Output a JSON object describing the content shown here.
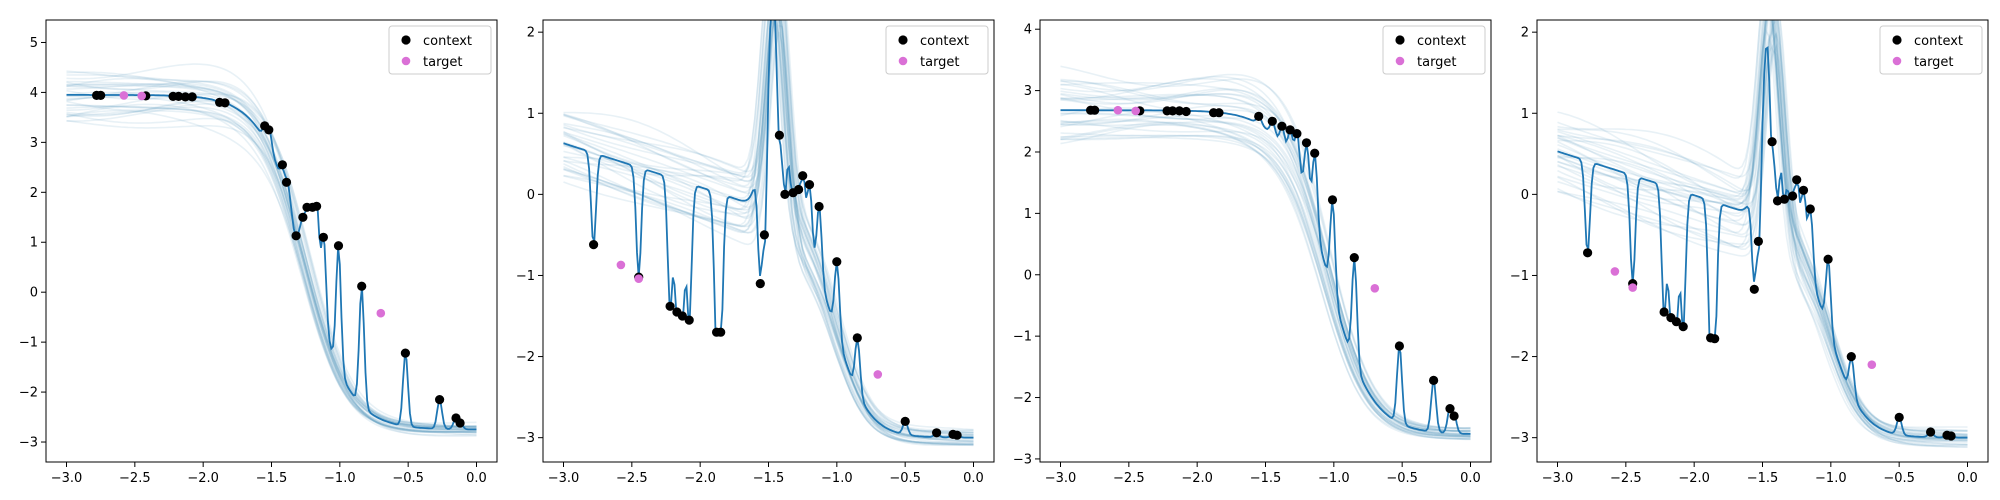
{
  "colors": {
    "mean_line": "#1f77b4",
    "samples": "#4f93b8",
    "context": "#000000",
    "target": "#da70d6",
    "axes": "#000000",
    "legend_border": "#cccccc"
  },
  "legend": {
    "context_label": "context",
    "target_label": "target",
    "placement": "top-right"
  },
  "chart_data": [
    {
      "type": "line",
      "title": "",
      "xlabel": "",
      "ylabel": "",
      "xlim": [
        -3.15,
        0.15
      ],
      "ylim": [
        -3.4,
        5.45
      ],
      "xticks": [
        -3.0,
        -2.5,
        -2.0,
        -1.5,
        -1.0,
        -0.5,
        0.0
      ],
      "yticks": [
        -3,
        -2,
        -1,
        0,
        1,
        2,
        3,
        4,
        5
      ],
      "mean_curve": {
        "low": -2.75,
        "high": 3.95,
        "center": -1.25,
        "width": 0.16,
        "peak": 0,
        "peak_center": -1.45,
        "peak_width": 0.1,
        "linear_slope": 0,
        "wiggle": 0.35
      },
      "sample_band": {
        "high_spread": 0.55,
        "low_spread": 0.12,
        "count": 32
      },
      "context": [
        [
          -2.78,
          3.94
        ],
        [
          -2.75,
          3.94
        ],
        [
          -2.42,
          3.93
        ],
        [
          -2.22,
          3.92
        ],
        [
          -2.18,
          3.92
        ],
        [
          -2.13,
          3.91
        ],
        [
          -2.08,
          3.91
        ],
        [
          -1.88,
          3.8
        ],
        [
          -1.84,
          3.79
        ],
        [
          -1.55,
          3.33
        ],
        [
          -1.52,
          3.25
        ],
        [
          -1.42,
          2.55
        ],
        [
          -1.39,
          2.2
        ],
        [
          -1.32,
          1.13
        ],
        [
          -1.27,
          1.5
        ],
        [
          -1.24,
          1.7
        ],
        [
          -1.2,
          1.7
        ],
        [
          -1.17,
          1.72
        ],
        [
          -1.12,
          1.1
        ],
        [
          -1.01,
          0.93
        ],
        [
          -0.84,
          0.12
        ],
        [
          -0.52,
          -1.22
        ],
        [
          -0.27,
          -2.15
        ],
        [
          -0.15,
          -2.52
        ],
        [
          -0.12,
          -2.62
        ]
      ],
      "target": [
        [
          -2.58,
          3.94
        ],
        [
          -2.45,
          3.93
        ],
        [
          -0.7,
          -0.42
        ]
      ]
    },
    {
      "type": "line",
      "title": "",
      "xlabel": "",
      "ylabel": "",
      "xlim": [
        -3.15,
        0.15
      ],
      "ylim": [
        -3.3,
        2.15
      ],
      "xticks": [
        -3.0,
        -2.5,
        -2.0,
        -1.5,
        -1.0,
        -0.5,
        0.0
      ],
      "yticks": [
        -3,
        -2,
        -1,
        0,
        1,
        2
      ],
      "mean_curve": {
        "low": -3.0,
        "high": -0.45,
        "center": -1.0,
        "width": 0.12,
        "peak": 2.8,
        "peak_center": -1.45,
        "peak_width": 0.1,
        "linear_slope": -0.9,
        "wiggle": 0.55
      },
      "sample_band": {
        "high_spread": 0.45,
        "low_spread": 0.1,
        "count": 32
      },
      "context": [
        [
          -2.78,
          -0.62
        ],
        [
          -2.45,
          -1.02
        ],
        [
          -2.22,
          -1.38
        ],
        [
          -2.17,
          -1.45
        ],
        [
          -2.13,
          -1.5
        ],
        [
          -2.08,
          -1.55
        ],
        [
          -1.88,
          -1.7
        ],
        [
          -1.85,
          -1.7
        ],
        [
          -1.56,
          -1.1
        ],
        [
          -1.53,
          -0.5
        ],
        [
          -1.42,
          0.73
        ],
        [
          -1.38,
          0.0
        ],
        [
          -1.32,
          0.02
        ],
        [
          -1.28,
          0.06
        ],
        [
          -1.25,
          0.23
        ],
        [
          -1.2,
          0.12
        ],
        [
          -1.13,
          -0.15
        ],
        [
          -1.0,
          -0.83
        ],
        [
          -0.85,
          -1.77
        ],
        [
          -0.5,
          -2.8
        ],
        [
          -0.27,
          -2.94
        ],
        [
          -0.15,
          -2.96
        ],
        [
          -0.12,
          -2.97
        ]
      ],
      "target": [
        [
          -2.58,
          -0.87
        ],
        [
          -2.45,
          -1.04
        ],
        [
          -0.7,
          -2.22
        ]
      ]
    },
    {
      "type": "line",
      "title": "",
      "xlabel": "",
      "ylabel": "",
      "xlim": [
        -3.15,
        0.15
      ],
      "ylim": [
        -3.05,
        4.15
      ],
      "xticks": [
        -3.0,
        -2.5,
        -2.0,
        -1.5,
        -1.0,
        -0.5,
        0.0
      ],
      "yticks": [
        -3,
        -2,
        -1,
        0,
        1,
        2,
        3,
        4
      ],
      "mean_curve": {
        "low": -2.6,
        "high": 2.68,
        "center": -1.05,
        "width": 0.16,
        "peak": 0,
        "peak_center": -1.45,
        "peak_width": 0.1,
        "linear_slope": 0,
        "wiggle": 0.3
      },
      "sample_band": {
        "high_spread": 0.6,
        "low_spread": 0.12,
        "count": 32
      },
      "context": [
        [
          -2.78,
          2.68
        ],
        [
          -2.75,
          2.68
        ],
        [
          -2.42,
          2.67
        ],
        [
          -2.22,
          2.67
        ],
        [
          -2.18,
          2.67
        ],
        [
          -2.13,
          2.67
        ],
        [
          -2.08,
          2.66
        ],
        [
          -1.88,
          2.64
        ],
        [
          -1.84,
          2.64
        ],
        [
          -1.55,
          2.58
        ],
        [
          -1.45,
          2.5
        ],
        [
          -1.38,
          2.42
        ],
        [
          -1.32,
          2.36
        ],
        [
          -1.27,
          2.3
        ],
        [
          -1.2,
          2.15
        ],
        [
          -1.14,
          1.98
        ],
        [
          -1.01,
          1.22
        ],
        [
          -0.85,
          0.28
        ],
        [
          -0.52,
          -1.16
        ],
        [
          -0.27,
          -1.72
        ],
        [
          -0.15,
          -2.18
        ],
        [
          -0.12,
          -2.3
        ]
      ],
      "target": [
        [
          -2.58,
          2.68
        ],
        [
          -2.45,
          2.67
        ],
        [
          -0.7,
          -0.22
        ]
      ]
    },
    {
      "type": "line",
      "title": "",
      "xlabel": "",
      "ylabel": "",
      "xlim": [
        -3.15,
        0.15
      ],
      "ylim": [
        -3.3,
        2.15
      ],
      "xticks": [
        -3.0,
        -2.5,
        -2.0,
        -1.5,
        -1.0,
        -0.5,
        0.0
      ],
      "yticks": [
        -3,
        -2,
        -1,
        0,
        1,
        2
      ],
      "mean_curve": {
        "low": -3.0,
        "high": -0.55,
        "center": -1.0,
        "width": 0.12,
        "peak": 2.7,
        "peak_center": -1.43,
        "peak_width": 0.1,
        "linear_slope": -0.9,
        "wiggle": 0.55
      },
      "sample_band": {
        "high_spread": 0.5,
        "low_spread": 0.1,
        "count": 32
      },
      "context": [
        [
          -2.78,
          -0.72
        ],
        [
          -2.45,
          -1.1
        ],
        [
          -2.22,
          -1.45
        ],
        [
          -2.17,
          -1.52
        ],
        [
          -2.13,
          -1.57
        ],
        [
          -2.08,
          -1.63
        ],
        [
          -1.88,
          -1.77
        ],
        [
          -1.85,
          -1.78
        ],
        [
          -1.56,
          -1.17
        ],
        [
          -1.53,
          -0.58
        ],
        [
          -1.43,
          0.65
        ],
        [
          -1.39,
          -0.08
        ],
        [
          -1.34,
          -0.06
        ],
        [
          -1.28,
          -0.02
        ],
        [
          -1.25,
          0.18
        ],
        [
          -1.2,
          0.05
        ],
        [
          -1.15,
          -0.18
        ],
        [
          -1.02,
          -0.8
        ],
        [
          -0.85,
          -2.0
        ],
        [
          -0.5,
          -2.75
        ],
        [
          -0.27,
          -2.93
        ],
        [
          -0.15,
          -2.97
        ],
        [
          -0.12,
          -2.98
        ]
      ],
      "target": [
        [
          -2.58,
          -0.95
        ],
        [
          -2.45,
          -1.15
        ],
        [
          -0.7,
          -2.1
        ]
      ]
    }
  ]
}
